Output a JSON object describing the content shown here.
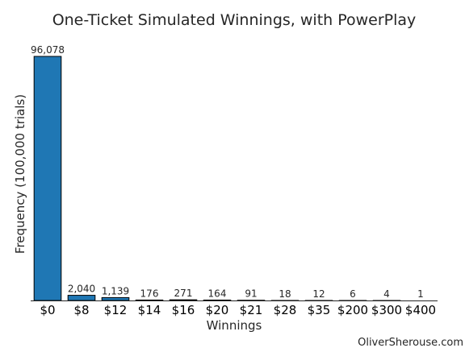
{
  "chart_data": {
    "type": "bar",
    "title": "One-Ticket Simulated Winnings, with PowerPlay",
    "xlabel": "Winnings",
    "ylabel": "Frequency (100,000 trials)",
    "categories": [
      "$0",
      "$8",
      "$12",
      "$14",
      "$16",
      "$20",
      "$21",
      "$28",
      "$35",
      "$200",
      "$300",
      "$400"
    ],
    "values": [
      96078,
      2040,
      1139,
      176,
      271,
      164,
      91,
      18,
      12,
      6,
      4,
      1
    ],
    "value_labels": [
      "96,078",
      "2,040",
      "1,139",
      "176",
      "271",
      "164",
      "91",
      "18",
      "12",
      "6",
      "4",
      "1"
    ],
    "ylim": [
      0,
      96078
    ],
    "grid": false,
    "legend": "none",
    "bar_color": "#1f77b4",
    "bar_edge_color": "#000000"
  },
  "credit": "OliverSherouse.com"
}
